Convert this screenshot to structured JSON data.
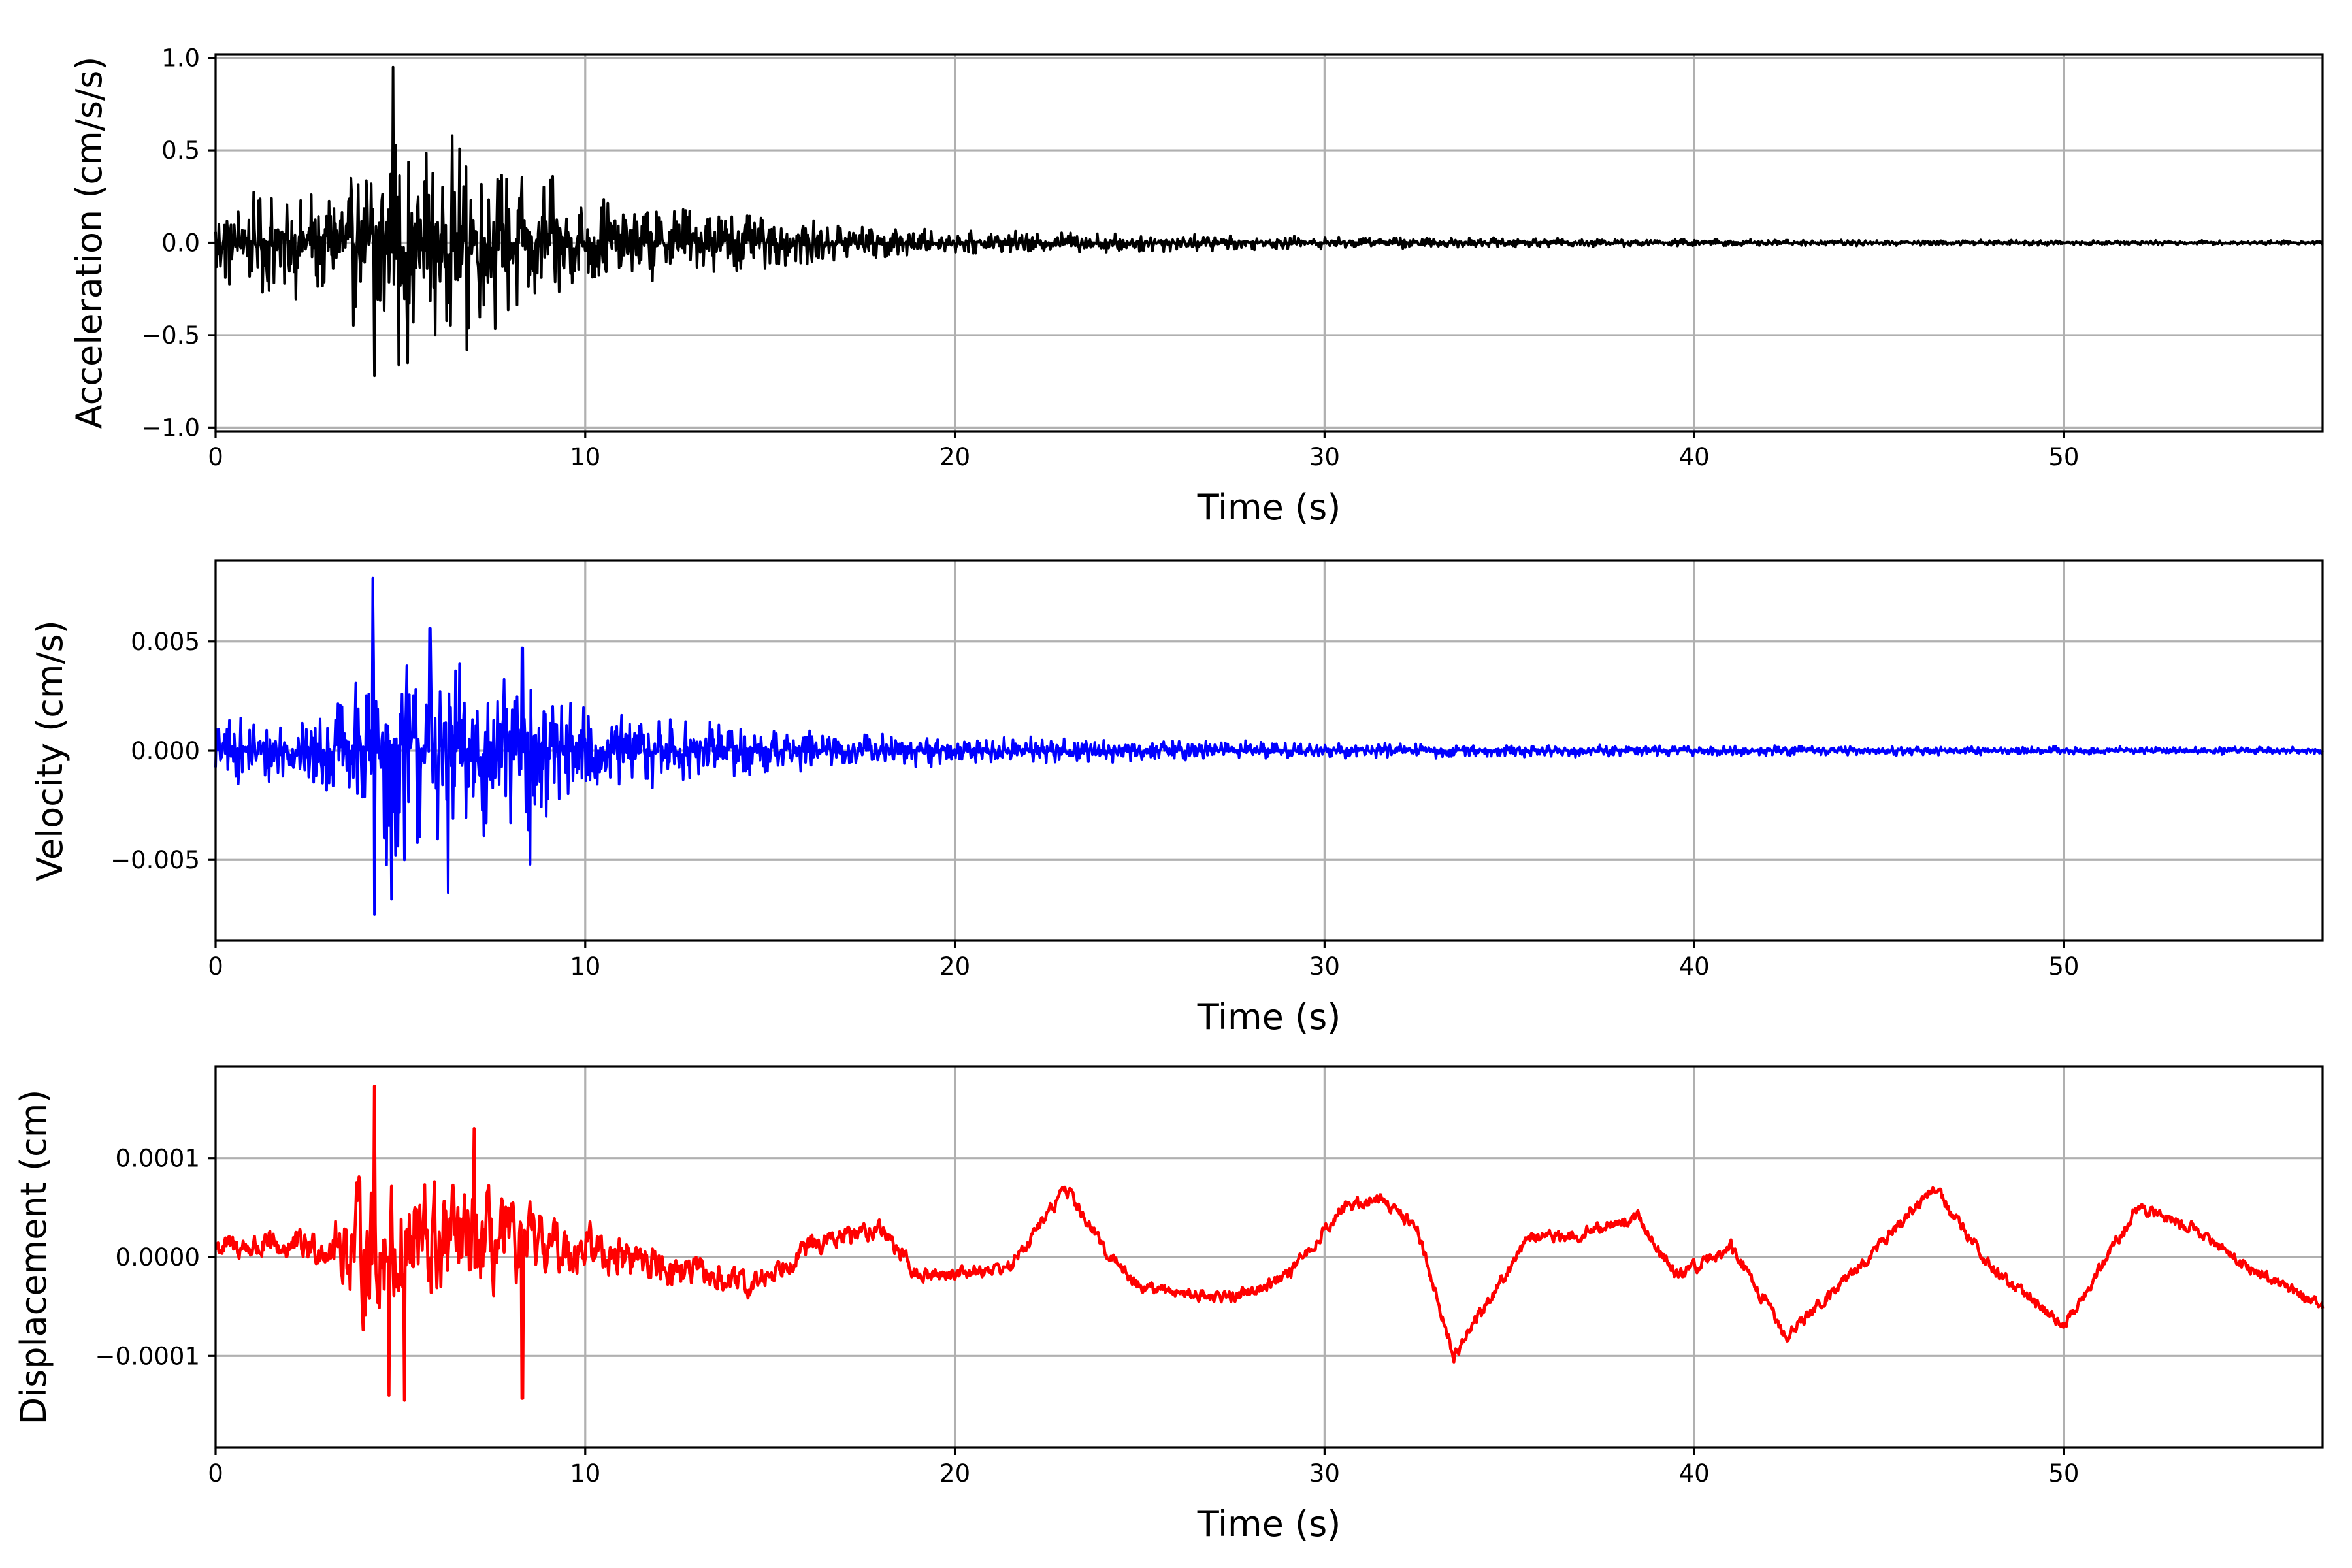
{
  "chart_data": [
    {
      "type": "line",
      "panel": "acceleration",
      "color": "#000000",
      "xlabel": "Time (s)",
      "ylabel": "Acceleration (cm/s/s)",
      "xlim": [
        0,
        57
      ],
      "ylim": [
        -1.02,
        1.02
      ],
      "grid": true,
      "x_ticks": [
        "0",
        "10",
        "20",
        "30",
        "40",
        "50"
      ],
      "x_tick_values": [
        0,
        10,
        20,
        30,
        40,
        50
      ],
      "y_ticks": [
        "−1.0",
        "−0.5",
        "0.0",
        "0.5",
        "1.0"
      ],
      "y_tick_values": [
        -1.0,
        -0.5,
        0.0,
        0.5,
        1.0
      ],
      "envelope": {
        "t": [
          0,
          1,
          3,
          4.5,
          6.5,
          8.5,
          10,
          15,
          20,
          30,
          40,
          57
        ],
        "amp": [
          0.25,
          0.28,
          0.35,
          0.58,
          0.55,
          0.42,
          0.28,
          0.15,
          0.07,
          0.035,
          0.02,
          0.012
        ]
      },
      "spikes": [
        {
          "t": 4.8,
          "v": 0.95
        },
        {
          "t": 4.3,
          "v": -0.72
        },
        {
          "t": 6.4,
          "v": 0.58
        },
        {
          "t": 5.2,
          "v": -0.65
        },
        {
          "t": 6.8,
          "v": -0.58
        },
        {
          "t": 4.95,
          "v": -0.66
        }
      ]
    },
    {
      "type": "line",
      "panel": "velocity",
      "color": "#0000ff",
      "xlabel": "Time (s)",
      "ylabel": "Velocity (cm/s)",
      "xlim": [
        0,
        57
      ],
      "ylim": [
        -0.0087,
        0.0087
      ],
      "grid": true,
      "x_ticks": [
        "0",
        "10",
        "20",
        "30",
        "40",
        "50"
      ],
      "x_tick_values": [
        0,
        10,
        20,
        30,
        40,
        50
      ],
      "y_ticks": [
        "−0.005",
        "0.000",
        "0.005"
      ],
      "y_tick_values": [
        -0.005,
        0.0,
        0.005
      ],
      "envelope": {
        "t": [
          0,
          2,
          3.5,
          4.5,
          6.5,
          8.5,
          10,
          15,
          20,
          30,
          40,
          57
        ],
        "amp": [
          0.0017,
          0.0015,
          0.0025,
          0.0055,
          0.0045,
          0.0038,
          0.0022,
          0.0011,
          0.0007,
          0.0004,
          0.00025,
          0.00018
        ]
      },
      "spikes": [
        {
          "t": 4.25,
          "v": 0.0079
        },
        {
          "t": 4.3,
          "v": -0.0075
        },
        {
          "t": 4.75,
          "v": -0.0068
        },
        {
          "t": 6.3,
          "v": -0.0065
        },
        {
          "t": 8.5,
          "v": -0.0052
        },
        {
          "t": 5.8,
          "v": 0.0056
        },
        {
          "t": 8.3,
          "v": 0.0047
        }
      ]
    },
    {
      "type": "line",
      "panel": "displacement",
      "color": "#ff0000",
      "xlabel": "Time (s)",
      "ylabel": "Displacement (cm)",
      "xlim": [
        0,
        57
      ],
      "ylim": [
        -0.000193,
        0.000193
      ],
      "grid": true,
      "x_ticks": [
        "0",
        "10",
        "20",
        "30",
        "40",
        "50"
      ],
      "x_tick_values": [
        0,
        10,
        20,
        30,
        40,
        50
      ],
      "y_ticks": [
        "−0.0001",
        "0.0000",
        "0.0001"
      ],
      "y_tick_values": [
        -0.0001,
        0.0,
        0.0001
      ],
      "trend": {
        "t": [
          0,
          3,
          10,
          14.5,
          16,
          18,
          19,
          21.5,
          23,
          24,
          25,
          27,
          27.5,
          29,
          30.5,
          31.5,
          32.5,
          33.5,
          35.5,
          36.5,
          38.5,
          39.5,
          41,
          42.5,
          45,
          46.5,
          48,
          50,
          52,
          53.5,
          55,
          57
        ],
        "v": [
          1e-05,
          1e-05,
          1e-05,
          -3e-05,
          1e-05,
          3e-05,
          -2e-05,
          -1e-05,
          7e-05,
          1e-05,
          -3e-05,
          -4e-05,
          -4e-05,
          -2e-05,
          5e-05,
          6e-05,
          3e-05,
          -0.0001,
          2e-05,
          2e-05,
          4e-05,
          -2e-05,
          1e-05,
          -8e-05,
          1e-05,
          7e-05,
          -1e-05,
          -7e-05,
          5e-05,
          3e-05,
          -1e-05,
          -5e-05
        ]
      },
      "envelope": {
        "t": [
          0,
          3,
          4,
          5.5,
          7.5,
          9,
          12,
          15,
          20,
          57
        ],
        "amp": [
          1.2e-05,
          1.8e-05,
          7e-05,
          7e-05,
          5e-05,
          3e-05,
          1.8e-05,
          1.2e-05,
          7e-06,
          6e-06
        ]
      },
      "spikes": [
        {
          "t": 4.3,
          "v": 0.000173
        },
        {
          "t": 5.1,
          "v": -0.000145
        },
        {
          "t": 7.0,
          "v": 0.00013
        },
        {
          "t": 8.3,
          "v": -0.000143
        },
        {
          "t": 4.7,
          "v": -0.00014
        }
      ]
    }
  ]
}
